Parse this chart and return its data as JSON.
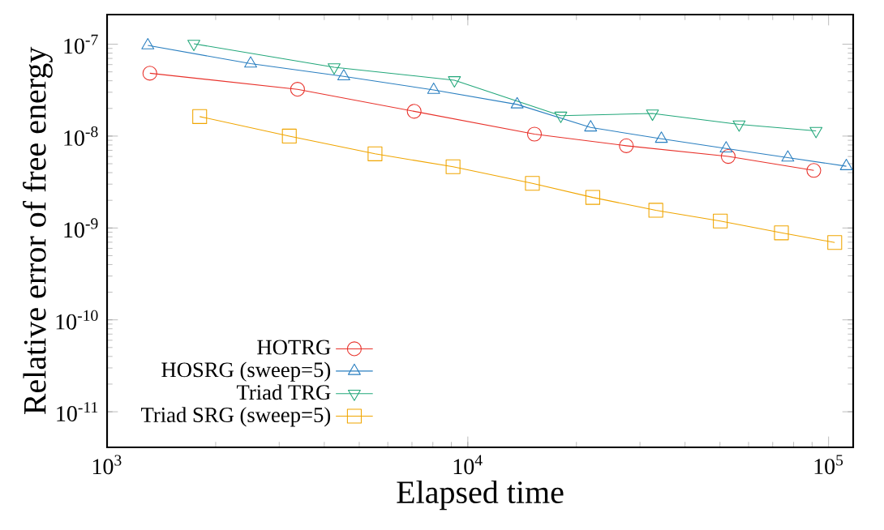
{
  "chart_data": {
    "type": "line",
    "xlabel": "Elapsed time",
    "ylabel": "Relative error of free energy",
    "log": "xy",
    "legend": "bottom left",
    "grid": false,
    "line_style": "solid",
    "xlim": [
      1000,
      117000
    ],
    "ylim": [
      4.1e-12,
      2.1e-07
    ],
    "xticks": [
      {
        "value": 1000,
        "label": "10$^{3}$"
      },
      {
        "value": 10000,
        "label": "10$^{4}$"
      },
      {
        "value": 100000,
        "label": "10$^{5}$"
      }
    ],
    "yticks": [
      {
        "value": 1e-11,
        "label": "10$^{-11}$"
      },
      {
        "value": 1e-10,
        "label": "10$^{-10}$"
      },
      {
        "value": 1e-09,
        "label": "10$^{-9}$"
      },
      {
        "value": 1e-08,
        "label": "10$^{-8}$"
      },
      {
        "value": 1e-07,
        "label": "10$^{-7}$"
      }
    ],
    "series": [
      {
        "name": "HOTRG",
        "color": "#e8312a",
        "marker": "circle",
        "x": [
          1314,
          3373,
          7100,
          15300,
          27500,
          52700,
          91000
        ],
        "values": [
          4.83e-08,
          3.23e-08,
          1.86e-08,
          1.05e-08,
          7.85e-09,
          6e-09,
          4.23e-09
        ]
      },
      {
        "name": "HOSRG (sweep=5)",
        "color": "#2a7fc0",
        "marker": "triangle",
        "x": [
          1297,
          2500,
          4530,
          8040,
          13700,
          21900,
          34400,
          52000,
          77100,
          112000
        ],
        "values": [
          9.7e-08,
          6.15e-08,
          4.46e-08,
          3.18e-08,
          2.21e-08,
          1.24e-08,
          9.33e-09,
          7.33e-09,
          5.83e-09,
          4.7e-09
        ]
      },
      {
        "name": "Triad TRG",
        "color": "#22a77a",
        "marker": "triangle_down",
        "x": [
          1740,
          4260,
          9180,
          18100,
          32500,
          56500,
          92300
        ],
        "values": [
          1.01e-07,
          5.61e-08,
          4.06e-08,
          1.67e-08,
          1.76e-08,
          1.34e-08,
          1.14e-08
        ]
      },
      {
        "name": "Triad SRG (sweep=5)",
        "color": "#f0a500",
        "marker": "square",
        "x": [
          1806,
          3200,
          5530,
          9100,
          15100,
          22200,
          33200,
          50100,
          74000,
          104000
        ],
        "values": [
          1.63e-08,
          1e-08,
          6.41e-09,
          4.64e-09,
          3.06e-09,
          2.15e-09,
          1.56e-09,
          1.19e-09,
          8.85e-10,
          6.95e-10
        ]
      }
    ]
  }
}
